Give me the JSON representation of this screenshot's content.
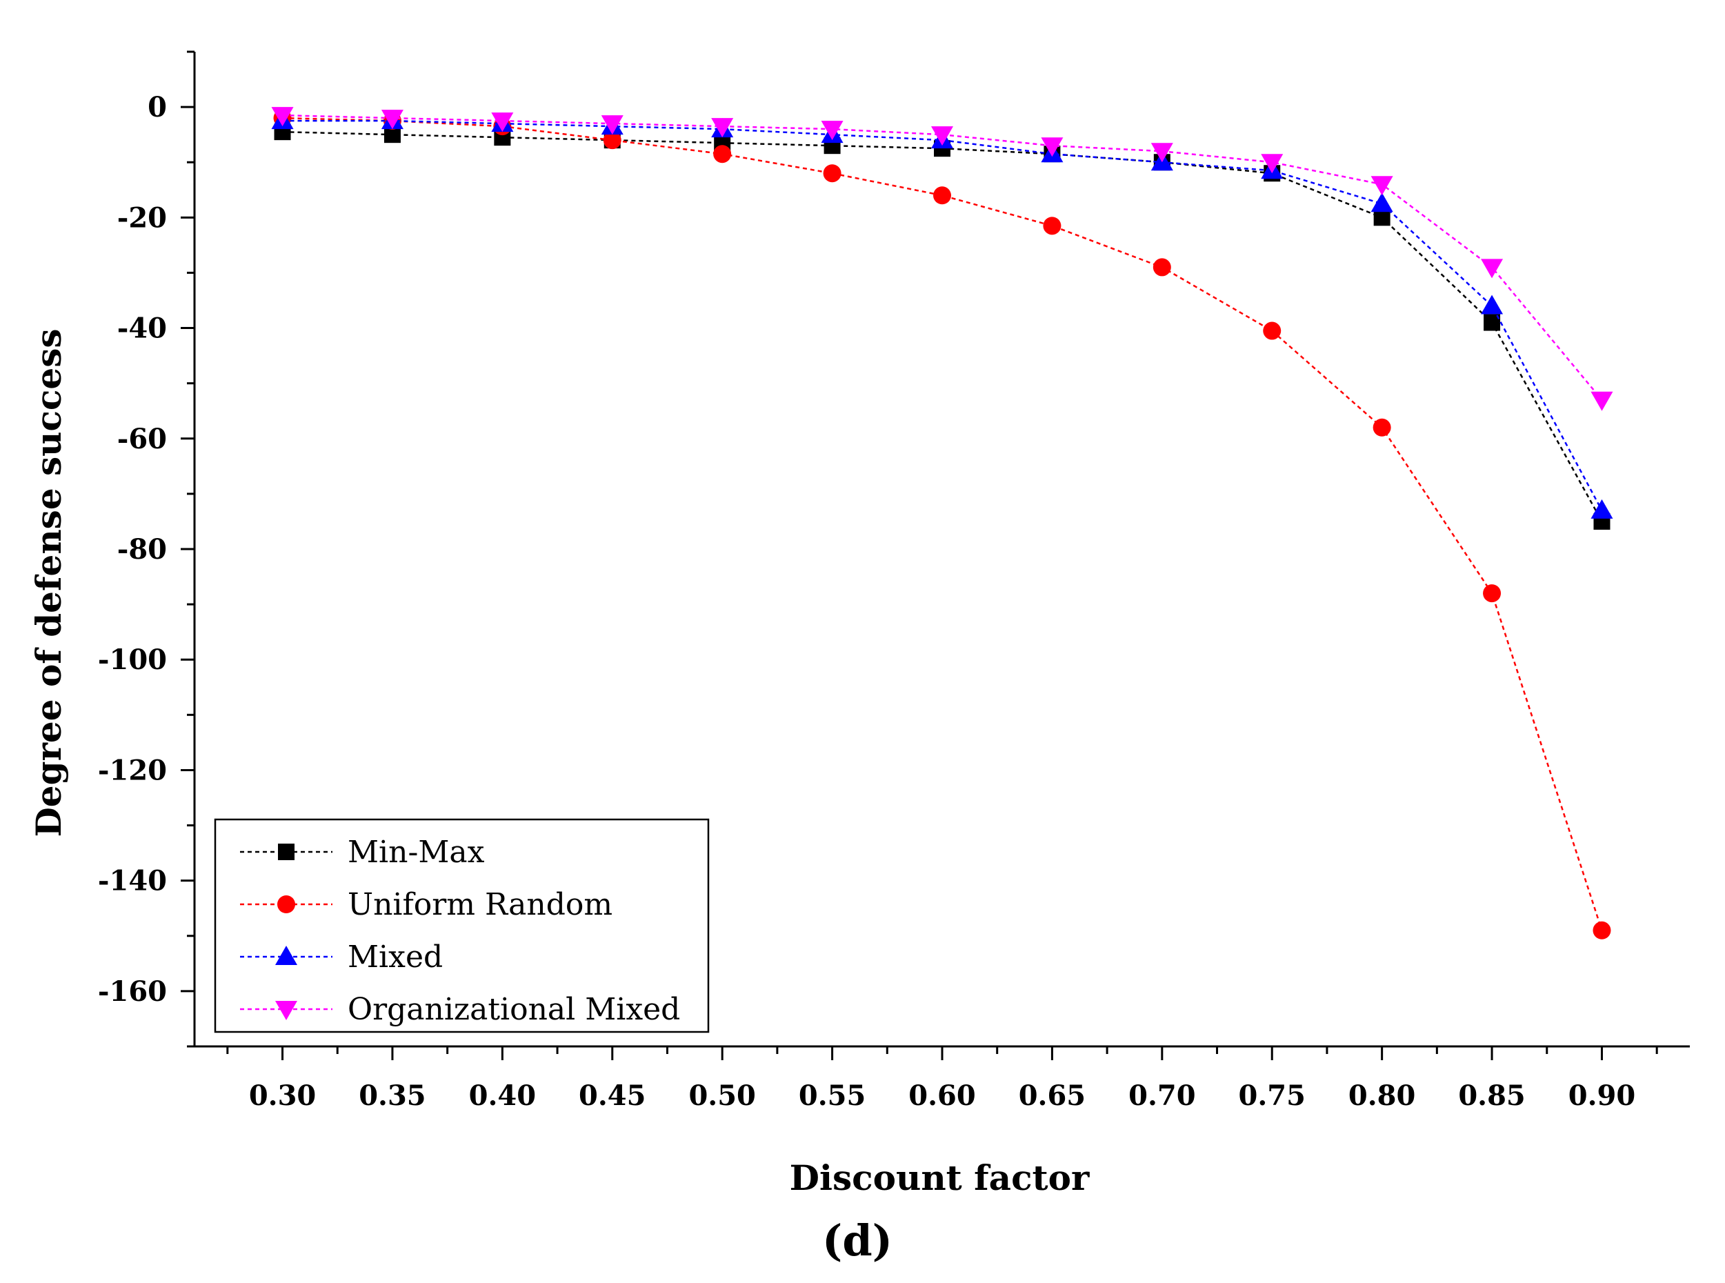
{
  "chart_data": {
    "type": "line",
    "title": "",
    "panel_label": "(d)",
    "xlabel": "Discount factor",
    "ylabel": "Degree of defense success",
    "xlim": [
      0.26,
      0.94
    ],
    "ylim": [
      -170,
      10
    ],
    "grid": false,
    "legend_position": "bottom-left",
    "x_ticks": [
      "0.30",
      "0.35",
      "0.40",
      "0.45",
      "0.50",
      "0.55",
      "0.60",
      "0.65",
      "0.70",
      "0.75",
      "0.80",
      "0.85",
      "0.90"
    ],
    "x": [
      0.3,
      0.35,
      0.4,
      0.45,
      0.5,
      0.55,
      0.6,
      0.65,
      0.7,
      0.75,
      0.8,
      0.85,
      0.9
    ],
    "y_ticks": [
      "0",
      "-20",
      "-40",
      "-60",
      "-80",
      "-100",
      "-120",
      "-140",
      "-160"
    ],
    "series": [
      {
        "name": "Min-Max",
        "color": "#000000",
        "marker": "square",
        "values": [
          -4.5,
          -5,
          -5.5,
          -6,
          -6.5,
          -7,
          -7.5,
          -8.5,
          -10,
          -12,
          -20,
          -39,
          -75
        ]
      },
      {
        "name": "Uniform Random",
        "color": "#ff0000",
        "marker": "circle",
        "values": [
          -2,
          -2.5,
          -3.5,
          -6,
          -8.5,
          -12,
          -16,
          -21.5,
          -29,
          -40.5,
          -58,
          -88,
          -149
        ]
      },
      {
        "name": "Mixed",
        "color": "#0000ff",
        "marker": "triangle-up",
        "values": [
          -2.5,
          -2.5,
          -3,
          -3.5,
          -4,
          -5,
          -6,
          -8.5,
          -10,
          -11.5,
          -17.5,
          -36,
          -73
        ]
      },
      {
        "name": "Organizational Mixed",
        "color": "#ff00ff",
        "marker": "triangle-down",
        "values": [
          -1.5,
          -2,
          -2.5,
          -3,
          -3.5,
          -4,
          -5,
          -7,
          -8,
          -10,
          -14,
          -29,
          -53
        ]
      }
    ]
  }
}
